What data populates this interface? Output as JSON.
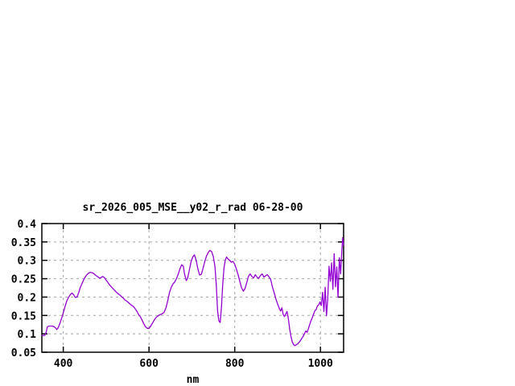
{
  "window": {
    "background": "#ffffff"
  },
  "chart_data": {
    "type": "line",
    "title": "sr_2026_005_MSE__y02_r_rad 06-28-00",
    "xlabel": "nm",
    "ylabel": "",
    "xlim": [
      350,
      1054
    ],
    "ylim": [
      0.05,
      0.4
    ],
    "grid": true,
    "legend_position": "none",
    "line_color": "#9400d3",
    "grid_color": "#a3a3a3",
    "axis_color": "#000000",
    "x_ticks": [
      {
        "value": 400,
        "label": "400"
      },
      {
        "value": 600,
        "label": "600"
      },
      {
        "value": 800,
        "label": "800"
      },
      {
        "value": 1000,
        "label": "1000"
      }
    ],
    "y_ticks": [
      {
        "value": 0.05,
        "label": "0.05"
      },
      {
        "value": 0.1,
        "label": "0.1"
      },
      {
        "value": 0.15,
        "label": "0.15"
      },
      {
        "value": 0.2,
        "label": "0.2"
      },
      {
        "value": 0.25,
        "label": "0.25"
      },
      {
        "value": 0.3,
        "label": "0.3"
      },
      {
        "value": 0.35,
        "label": "0.35"
      },
      {
        "value": 0.4,
        "label": "0.4"
      }
    ],
    "x": [
      350,
      354,
      357,
      360,
      363,
      366,
      370,
      374,
      378,
      382,
      385,
      388,
      392,
      396,
      400,
      404,
      408,
      412,
      416,
      420,
      424,
      428,
      432,
      436,
      440,
      444,
      448,
      452,
      456,
      460,
      464,
      468,
      472,
      476,
      480,
      484,
      488,
      492,
      496,
      500,
      504,
      508,
      512,
      516,
      520,
      524,
      528,
      532,
      536,
      540,
      544,
      548,
      552,
      556,
      560,
      564,
      568,
      572,
      576,
      580,
      584,
      588,
      592,
      596,
      600,
      604,
      608,
      612,
      616,
      620,
      625,
      630,
      635,
      640,
      644,
      648,
      652,
      656,
      660,
      664,
      668,
      672,
      676,
      680,
      683,
      687,
      690,
      694,
      698,
      702,
      706,
      710,
      714,
      718,
      722,
      726,
      730,
      734,
      738,
      742,
      746,
      750,
      754,
      757,
      760,
      763,
      766,
      769,
      772,
      775,
      778,
      781,
      784,
      788,
      792,
      796,
      800,
      804,
      808,
      812,
      816,
      820,
      824,
      828,
      832,
      836,
      840,
      844,
      848,
      852,
      856,
      860,
      864,
      868,
      872,
      876,
      880,
      884,
      888,
      892,
      896,
      900,
      904,
      907,
      910,
      913,
      916,
      919,
      922,
      925,
      928,
      931,
      934,
      937,
      940,
      943,
      947,
      951,
      955,
      959,
      963,
      966,
      969,
      972,
      975,
      978,
      981,
      984,
      987,
      990,
      993,
      996,
      999,
      1002,
      1005,
      1008,
      1011,
      1014,
      1017,
      1020,
      1023,
      1026,
      1029,
      1032,
      1035,
      1038,
      1041,
      1044,
      1047,
      1050,
      1052,
      1054
    ],
    "y": [
      0.096,
      0.095,
      0.096,
      0.104,
      0.119,
      0.121,
      0.121,
      0.121,
      0.12,
      0.116,
      0.112,
      0.116,
      0.128,
      0.142,
      0.157,
      0.174,
      0.189,
      0.199,
      0.206,
      0.211,
      0.207,
      0.199,
      0.2,
      0.212,
      0.227,
      0.238,
      0.248,
      0.256,
      0.262,
      0.266,
      0.267,
      0.266,
      0.263,
      0.259,
      0.256,
      0.252,
      0.253,
      0.256,
      0.253,
      0.246,
      0.24,
      0.233,
      0.228,
      0.223,
      0.218,
      0.213,
      0.209,
      0.206,
      0.201,
      0.197,
      0.192,
      0.189,
      0.185,
      0.181,
      0.177,
      0.174,
      0.168,
      0.161,
      0.152,
      0.146,
      0.137,
      0.127,
      0.119,
      0.115,
      0.115,
      0.121,
      0.129,
      0.137,
      0.144,
      0.148,
      0.152,
      0.154,
      0.158,
      0.172,
      0.192,
      0.213,
      0.227,
      0.236,
      0.241,
      0.25,
      0.262,
      0.276,
      0.288,
      0.284,
      0.262,
      0.245,
      0.251,
      0.272,
      0.296,
      0.309,
      0.315,
      0.3,
      0.277,
      0.26,
      0.262,
      0.278,
      0.296,
      0.311,
      0.321,
      0.327,
      0.324,
      0.31,
      0.282,
      0.232,
      0.162,
      0.135,
      0.131,
      0.172,
      0.235,
      0.28,
      0.301,
      0.309,
      0.304,
      0.3,
      0.295,
      0.297,
      0.289,
      0.276,
      0.26,
      0.242,
      0.225,
      0.216,
      0.223,
      0.239,
      0.256,
      0.263,
      0.256,
      0.252,
      0.261,
      0.254,
      0.251,
      0.259,
      0.263,
      0.254,
      0.258,
      0.261,
      0.255,
      0.248,
      0.227,
      0.212,
      0.195,
      0.181,
      0.169,
      0.162,
      0.171,
      0.153,
      0.147,
      0.154,
      0.161,
      0.142,
      0.114,
      0.094,
      0.079,
      0.071,
      0.068,
      0.07,
      0.073,
      0.078,
      0.085,
      0.092,
      0.101,
      0.108,
      0.104,
      0.114,
      0.126,
      0.136,
      0.144,
      0.154,
      0.163,
      0.166,
      0.176,
      0.179,
      0.187,
      0.177,
      0.213,
      0.161,
      0.227,
      0.149,
      0.196,
      0.284,
      0.243,
      0.293,
      0.221,
      0.318,
      0.228,
      0.282,
      0.199,
      0.307,
      0.263,
      0.33,
      0.362,
      0.341
    ]
  }
}
